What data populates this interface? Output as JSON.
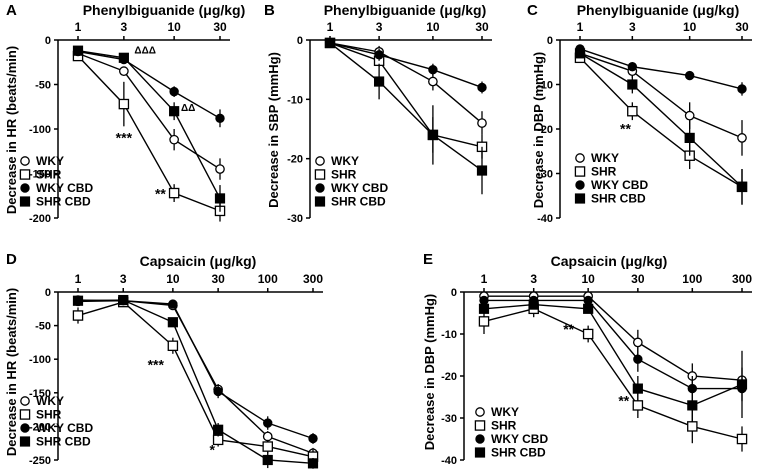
{
  "chart_data": [
    {
      "letter": "A",
      "type": "line",
      "x_title": "Phenylbiguanide (μg/kg)",
      "ylabel": "Decrease in HR (beats/min)",
      "x_scale": "log",
      "x": [
        1,
        3,
        10,
        30
      ],
      "x_tick_labels": [
        "1",
        "3",
        "10",
        "30"
      ],
      "ylim": [
        -200,
        0
      ],
      "y_ticks": [
        0,
        -50,
        -100,
        -150,
        -200
      ],
      "y_tick_labels": [
        "0",
        "-50",
        "-100",
        "-150",
        "-200"
      ],
      "series": [
        {
          "name": "WKY",
          "marker": "open-circle",
          "values": [
            -15,
            -35,
            -112,
            -145
          ],
          "err": [
            3,
            5,
            12,
            12
          ]
        },
        {
          "name": "SHR",
          "marker": "open-square",
          "values": [
            -18,
            -72,
            -172,
            -192
          ],
          "err": [
            3,
            25,
            10,
            12
          ]
        },
        {
          "name": "WKY CBD",
          "marker": "filled-circle",
          "values": [
            -13,
            -22,
            -58,
            -88
          ],
          "err": [
            2,
            4,
            6,
            10
          ]
        },
        {
          "name": "SHR CBD",
          "marker": "filled-square",
          "values": [
            -12,
            -20,
            -80,
            -178
          ],
          "err": [
            2,
            4,
            10,
            15
          ]
        }
      ],
      "annotations": [
        {
          "text": "***",
          "x": 3,
          "y": -115
        },
        {
          "text": "ΔΔΔ",
          "x": 5,
          "y": -15
        },
        {
          "text": "ΔΔ",
          "x": 14,
          "y": -80
        },
        {
          "text": "**",
          "x": 7.2,
          "y": -178
        }
      ],
      "legend_position": "bottom-left"
    },
    {
      "letter": "B",
      "type": "line",
      "x_title": "Phenylbiguanide (μg/kg)",
      "ylabel": "Decrease in SBP (mmHg)",
      "x_scale": "log",
      "x": [
        1,
        3,
        10,
        30
      ],
      "x_tick_labels": [
        "1",
        "3",
        "10",
        "30"
      ],
      "ylim": [
        -30,
        0
      ],
      "y_ticks": [
        0,
        -10,
        -20,
        -30
      ],
      "y_tick_labels": [
        "0",
        "-10",
        "-20",
        "-30"
      ],
      "series": [
        {
          "name": "WKY",
          "marker": "open-circle",
          "values": [
            -0.5,
            -2,
            -7,
            -14
          ],
          "err": [
            0.5,
            1,
            1.5,
            2
          ]
        },
        {
          "name": "SHR",
          "marker": "open-square",
          "values": [
            -0.5,
            -3.5,
            -16,
            -18
          ],
          "err": [
            0.5,
            1,
            3,
            2
          ]
        },
        {
          "name": "WKY CBD",
          "marker": "filled-circle",
          "values": [
            -0.5,
            -2.5,
            -5,
            -8
          ],
          "err": [
            0.5,
            1,
            1,
            1
          ]
        },
        {
          "name": "SHR CBD",
          "marker": "filled-square",
          "values": [
            -0.5,
            -7,
            -16,
            -22
          ],
          "err": [
            0.5,
            3,
            5,
            4
          ]
        }
      ],
      "annotations": [],
      "legend_position": "bottom-left"
    },
    {
      "letter": "C",
      "type": "line",
      "x_title": "Phenylbiguanide (μg/kg)",
      "ylabel": "Decrease in DBP (mmHg)",
      "x_scale": "log",
      "x": [
        1,
        3,
        10,
        30
      ],
      "x_tick_labels": [
        "1",
        "3",
        "10",
        "30"
      ],
      "ylim": [
        -40,
        0
      ],
      "y_ticks": [
        0,
        -10,
        -20,
        -30,
        -40
      ],
      "y_tick_labels": [
        "0",
        "-10",
        "-20",
        "-30",
        "-40"
      ],
      "series": [
        {
          "name": "WKY",
          "marker": "open-circle",
          "values": [
            -3,
            -7,
            -17,
            -22
          ],
          "err": [
            1,
            1.5,
            3,
            4
          ]
        },
        {
          "name": "SHR",
          "marker": "open-square",
          "values": [
            -4,
            -16,
            -26,
            -33
          ],
          "err": [
            1,
            2,
            3,
            4
          ]
        },
        {
          "name": "WKY CBD",
          "marker": "filled-circle",
          "values": [
            -2,
            -6,
            -8,
            -11
          ],
          "err": [
            1,
            1,
            1,
            1.5
          ]
        },
        {
          "name": "SHR CBD",
          "marker": "filled-square",
          "values": [
            -3,
            -10,
            -22,
            -33
          ],
          "err": [
            1,
            2,
            4,
            4
          ]
        }
      ],
      "annotations": [
        {
          "text": "**",
          "x": 2.6,
          "y": -21
        }
      ],
      "legend_position": "bottom-left"
    },
    {
      "letter": "D",
      "type": "line",
      "x_title": "Capsaicin (μg/kg)",
      "ylabel": "Decrease in HR (beats/min)",
      "x_scale": "log",
      "x": [
        1,
        3,
        10,
        30,
        100,
        300
      ],
      "x_tick_labels": [
        "1",
        "3",
        "10",
        "30",
        "100",
        "300"
      ],
      "ylim": [
        -250,
        0
      ],
      "y_ticks": [
        0,
        -50,
        -100,
        -150,
        -200,
        -250
      ],
      "y_tick_labels": [
        "0",
        "-50",
        "-100",
        "-150",
        "-200",
        "-250"
      ],
      "series": [
        {
          "name": "WKY",
          "marker": "open-circle",
          "values": [
            -12,
            -13,
            -20,
            -145,
            -215,
            -240
          ],
          "err": [
            3,
            3,
            4,
            8,
            8,
            8
          ]
        },
        {
          "name": "SHR",
          "marker": "open-square",
          "values": [
            -35,
            -15,
            -80,
            -220,
            -230,
            -245
          ],
          "err": [
            12,
            4,
            12,
            10,
            10,
            10
          ]
        },
        {
          "name": "WKY CBD",
          "marker": "filled-circle",
          "values": [
            -14,
            -13,
            -18,
            -148,
            -195,
            -218
          ],
          "err": [
            3,
            3,
            3,
            10,
            10,
            8
          ]
        },
        {
          "name": "SHR CBD",
          "marker": "filled-square",
          "values": [
            -13,
            -12,
            -45,
            -205,
            -250,
            -255
          ],
          "err": [
            3,
            3,
            5,
            10,
            12,
            8
          ]
        }
      ],
      "annotations": [
        {
          "text": "***",
          "x": 6.6,
          "y": -115
        },
        {
          "text": "*",
          "x": 26,
          "y": -242
        }
      ],
      "legend_position": "bottom-left"
    },
    {
      "letter": "E",
      "type": "line",
      "x_title": "Capsaicin (μg/kg)",
      "ylabel": "Decrease in DBP (mmHg)",
      "x_scale": "log",
      "x": [
        1,
        3,
        10,
        30,
        100,
        300
      ],
      "x_tick_labels": [
        "1",
        "3",
        "10",
        "30",
        "100",
        "300"
      ],
      "ylim": [
        -40,
        0
      ],
      "y_ticks": [
        0,
        -10,
        -20,
        -30,
        -40
      ],
      "y_tick_labels": [
        "0",
        "-10",
        "-20",
        "-30",
        "-40"
      ],
      "series": [
        {
          "name": "WKY",
          "marker": "open-circle",
          "values": [
            -1,
            -1,
            -1,
            -12,
            -20,
            -21
          ],
          "err": [
            1,
            1,
            1,
            3,
            3,
            3
          ]
        },
        {
          "name": "SHR",
          "marker": "open-square",
          "values": [
            -7,
            -4,
            -10,
            -27,
            -32,
            -35
          ],
          "err": [
            3,
            2,
            2,
            3,
            4,
            3
          ]
        },
        {
          "name": "WKY CBD",
          "marker": "filled-circle",
          "values": [
            -2,
            -2,
            -2,
            -16,
            -23,
            -23
          ],
          "err": [
            1,
            1,
            1,
            3,
            3,
            3
          ]
        },
        {
          "name": "SHR CBD",
          "marker": "filled-square",
          "values": [
            -4,
            -3,
            -4,
            -23,
            -27,
            -22
          ],
          "err": [
            1,
            1,
            1,
            3,
            4,
            8
          ]
        }
      ],
      "annotations": [
        {
          "text": "**",
          "x": 6.5,
          "y": -10
        },
        {
          "text": "**",
          "x": 22,
          "y": -27
        }
      ],
      "legend_position": "bottom-left"
    }
  ]
}
